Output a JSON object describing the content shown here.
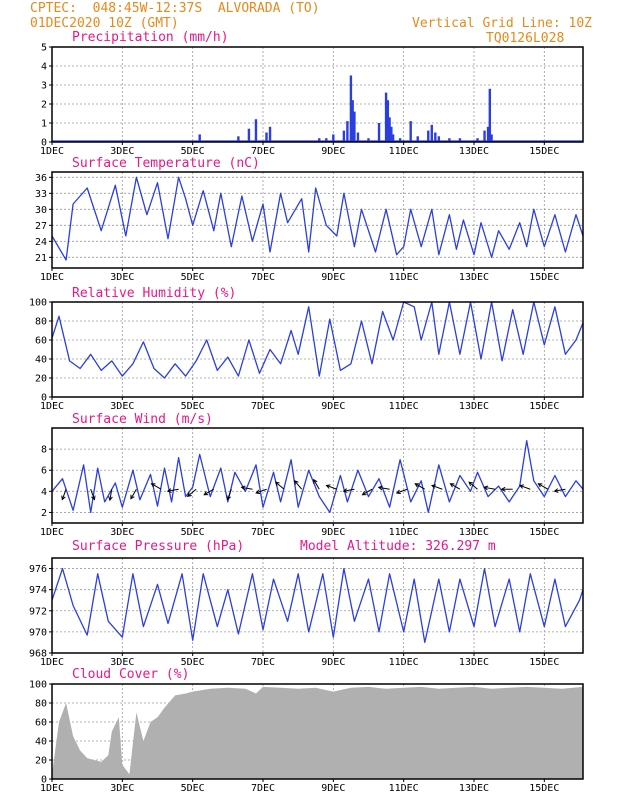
{
  "header": {
    "line1": "CPTEC:  048:45W-12:37S  ALVORADA (TO)",
    "line2": "01DEC2020 10Z (GMT)",
    "grid_note": "Vertical Grid Line: 10Z",
    "code": "TQ0126L028"
  },
  "x_labels": [
    "1DEC",
    "3DEC",
    "5DEC",
    "7DEC",
    "9DEC",
    "11DEC",
    "13DEC",
    "15DEC"
  ],
  "colors": {
    "header": "#e8891a",
    "title": "#e8188a",
    "line": "#2b3fe0",
    "cloud": "#b0b0b0"
  },
  "chart_data": [
    {
      "type": "bar",
      "title": "Precipitation (mm/h)",
      "ylim": [
        0,
        5
      ],
      "yticks": [
        0,
        1,
        2,
        3,
        4,
        5
      ],
      "xlim": [
        1,
        16.1
      ],
      "x": [
        5.2,
        6.3,
        6.6,
        6.8,
        7.1,
        7.2,
        8.6,
        8.8,
        9.0,
        9.3,
        9.4,
        9.5,
        9.55,
        9.6,
        9.7,
        10.0,
        10.3,
        10.5,
        10.55,
        10.6,
        10.65,
        10.7,
        10.9,
        11.2,
        11.4,
        11.7,
        11.8,
        11.9,
        12.0,
        12.3,
        12.6,
        13.1,
        13.3,
        13.4,
        13.45,
        13.5
      ],
      "values": [
        0.4,
        0.3,
        0.7,
        1.2,
        0.5,
        0.8,
        0.2,
        0.2,
        0.4,
        0.6,
        1.1,
        3.5,
        2.2,
        1.6,
        0.5,
        0.2,
        1.0,
        2.6,
        2.2,
        1.3,
        0.8,
        0.4,
        0.2,
        1.1,
        0.3,
        0.6,
        0.9,
        0.5,
        0.3,
        0.2,
        0.2,
        0.2,
        0.6,
        0.8,
        2.8,
        0.4
      ]
    },
    {
      "type": "line",
      "title": "Surface Temperature (nC)",
      "ylim": [
        19,
        37
      ],
      "yticks": [
        21,
        24,
        27,
        30,
        33,
        36
      ],
      "xlim": [
        1,
        16.1
      ],
      "x": [
        1.0,
        1.4,
        1.6,
        2.0,
        2.4,
        2.8,
        3.1,
        3.4,
        3.7,
        4.0,
        4.3,
        4.6,
        4.8,
        5.0,
        5.3,
        5.6,
        5.8,
        6.1,
        6.4,
        6.7,
        7.0,
        7.2,
        7.5,
        7.7,
        8.1,
        8.3,
        8.5,
        8.8,
        9.1,
        9.3,
        9.6,
        9.8,
        10.2,
        10.5,
        10.8,
        11.0,
        11.2,
        11.5,
        11.8,
        12.0,
        12.3,
        12.5,
        12.7,
        13.0,
        13.2,
        13.5,
        13.7,
        14.0,
        14.3,
        14.5,
        14.7,
        15.0,
        15.3,
        15.6,
        15.9,
        16.1
      ],
      "values": [
        25,
        20.5,
        31,
        34,
        26,
        34.5,
        25,
        36,
        29,
        35,
        24.5,
        36,
        32,
        27,
        33.5,
        26,
        33,
        23,
        32.5,
        24,
        31,
        22,
        33,
        27.5,
        32,
        22,
        34,
        27,
        25,
        33,
        23,
        30,
        22,
        30,
        21.5,
        23,
        30,
        23,
        30,
        21.5,
        29,
        22.5,
        28,
        21.5,
        27.5,
        21,
        26,
        22.5,
        27.5,
        23,
        30,
        23,
        29,
        22,
        29,
        25
      ]
    },
    {
      "type": "line",
      "title": "Relative Humidity (%)",
      "ylim": [
        0,
        100
      ],
      "yticks": [
        0,
        20,
        40,
        60,
        80,
        100
      ],
      "xlim": [
        1,
        16.1
      ],
      "x": [
        1.0,
        1.2,
        1.5,
        1.8,
        2.1,
        2.4,
        2.7,
        3.0,
        3.3,
        3.6,
        3.9,
        4.2,
        4.5,
        4.8,
        5.1,
        5.4,
        5.7,
        6.0,
        6.3,
        6.6,
        6.9,
        7.2,
        7.5,
        7.8,
        8.0,
        8.3,
        8.6,
        8.9,
        9.2,
        9.5,
        9.8,
        10.1,
        10.4,
        10.7,
        11.0,
        11.3,
        11.5,
        11.8,
        12.0,
        12.3,
        12.6,
        12.9,
        13.2,
        13.5,
        13.8,
        14.1,
        14.4,
        14.7,
        15.0,
        15.3,
        15.6,
        15.9,
        16.1
      ],
      "values": [
        62,
        85,
        38,
        30,
        45,
        28,
        38,
        22,
        35,
        58,
        30,
        20,
        35,
        22,
        38,
        60,
        28,
        42,
        22,
        60,
        25,
        50,
        35,
        70,
        45,
        95,
        22,
        82,
        28,
        35,
        80,
        35,
        90,
        60,
        100,
        95,
        60,
        100,
        45,
        100,
        45,
        100,
        40,
        100,
        38,
        92,
        45,
        100,
        55,
        95,
        45,
        60,
        78
      ]
    },
    {
      "type": "line",
      "title": "Surface Wind (m/s)",
      "ylim": [
        1,
        10
      ],
      "yticks": [
        2,
        4,
        6,
        8
      ],
      "xlim": [
        1,
        16.1
      ],
      "x": [
        1.0,
        1.3,
        1.6,
        1.9,
        2.1,
        2.3,
        2.5,
        2.8,
        3.0,
        3.3,
        3.5,
        3.8,
        4.0,
        4.2,
        4.4,
        4.6,
        4.8,
        5.0,
        5.2,
        5.5,
        5.8,
        6.0,
        6.2,
        6.5,
        6.8,
        7.0,
        7.3,
        7.5,
        7.8,
        8.0,
        8.3,
        8.6,
        8.9,
        9.2,
        9.4,
        9.7,
        10.0,
        10.3,
        10.6,
        10.9,
        11.2,
        11.5,
        11.7,
        12.0,
        12.3,
        12.6,
        12.9,
        13.1,
        13.4,
        13.7,
        14.0,
        14.3,
        14.5,
        14.7,
        15.0,
        15.3,
        15.6,
        15.9,
        16.1
      ],
      "values": [
        4,
        5.2,
        2.2,
        6.5,
        2.0,
        6.2,
        3.0,
        4.8,
        2.5,
        6.0,
        3.2,
        5.6,
        2.6,
        6.2,
        3.0,
        7.2,
        3.5,
        4.4,
        7.5,
        3.5,
        6.2,
        3.0,
        5.8,
        4.0,
        6.5,
        2.5,
        5.8,
        3.0,
        7.0,
        2.5,
        6.0,
        3.5,
        2.0,
        5.5,
        3.0,
        6.0,
        3.5,
        5.2,
        2.5,
        7.0,
        3.0,
        5.0,
        2.0,
        6.5,
        3.0,
        5.5,
        4.0,
        5.8,
        3.5,
        4.5,
        3.0,
        4.5,
        8.8,
        5.0,
        3.5,
        5.5,
        3.5,
        5.0,
        4.2
      ],
      "vectors": {
        "x": [
          1.4,
          2.1,
          2.7,
          3.4,
          4.1,
          4.6,
          5.1,
          5.6,
          6.1,
          6.7,
          7.1,
          7.6,
          8.1,
          8.6,
          9.1,
          9.6,
          10.1,
          10.6,
          11.1,
          11.6,
          12.1,
          12.6,
          13.1,
          13.6,
          14.1,
          14.6,
          15.1,
          15.6
        ],
        "dir": [
          200,
          160,
          190,
          210,
          300,
          260,
          230,
          240,
          200,
          280,
          250,
          310,
          320,
          330,
          290,
          260,
          240,
          280,
          250,
          300,
          290,
          300,
          310,
          280,
          270,
          290,
          300,
          260
        ]
      }
    },
    {
      "type": "line",
      "title": "Surface Pressure (hPa)",
      "annotation": "Model Altitude: 326.297 m",
      "ylim": [
        968,
        977
      ],
      "yticks": [
        968,
        970,
        972,
        974,
        976
      ],
      "xlim": [
        1,
        16.1
      ],
      "x": [
        1.0,
        1.3,
        1.6,
        2.0,
        2.3,
        2.6,
        3.0,
        3.3,
        3.6,
        4.0,
        4.3,
        4.7,
        5.0,
        5.3,
        5.7,
        6.0,
        6.3,
        6.7,
        7.0,
        7.3,
        7.7,
        8.0,
        8.3,
        8.7,
        9.0,
        9.3,
        9.6,
        10.0,
        10.3,
        10.6,
        11.0,
        11.3,
        11.6,
        12.0,
        12.3,
        12.6,
        13.0,
        13.3,
        13.6,
        14.0,
        14.3,
        14.6,
        15.0,
        15.3,
        15.6,
        16.0,
        16.1
      ],
      "values": [
        973,
        976,
        972.5,
        969.7,
        975.5,
        971,
        969.5,
        975.5,
        970.5,
        974.5,
        970.8,
        975.5,
        969.2,
        975.5,
        970.5,
        974,
        969.8,
        975.5,
        970.2,
        975,
        971,
        975.5,
        970,
        975.5,
        969.5,
        976,
        971,
        975,
        970,
        975.5,
        970,
        975,
        969,
        975,
        970,
        975,
        970.5,
        976,
        970.5,
        975,
        970,
        975.5,
        970.5,
        975,
        970.5,
        973,
        974
      ]
    },
    {
      "type": "area",
      "title": "Cloud Cover (%)",
      "ylim": [
        0,
        100
      ],
      "yticks": [
        0,
        20,
        40,
        60,
        80,
        100
      ],
      "xlim": [
        1,
        16.1
      ],
      "x": [
        1.0,
        1.2,
        1.4,
        1.6,
        1.8,
        2.0,
        2.2,
        2.4,
        2.6,
        2.7,
        2.9,
        3.0,
        3.2,
        3.4,
        3.6,
        3.8,
        4.0,
        4.2,
        4.5,
        4.8,
        5.0,
        5.5,
        6.0,
        6.5,
        6.8,
        7.0,
        7.5,
        8.0,
        8.5,
        9.0,
        9.5,
        10.0,
        10.5,
        11.0,
        11.5,
        12.0,
        12.5,
        13.0,
        13.5,
        14.0,
        14.5,
        15.0,
        15.5,
        16.1
      ],
      "values": [
        5,
        60,
        80,
        45,
        30,
        22,
        20,
        18,
        25,
        50,
        65,
        15,
        5,
        70,
        40,
        60,
        65,
        75,
        88,
        90,
        92,
        95,
        96,
        95,
        90,
        97,
        96,
        95,
        96,
        92,
        96,
        97,
        95,
        96,
        97,
        95,
        96,
        97,
        95,
        96,
        97,
        96,
        95,
        97
      ]
    }
  ]
}
